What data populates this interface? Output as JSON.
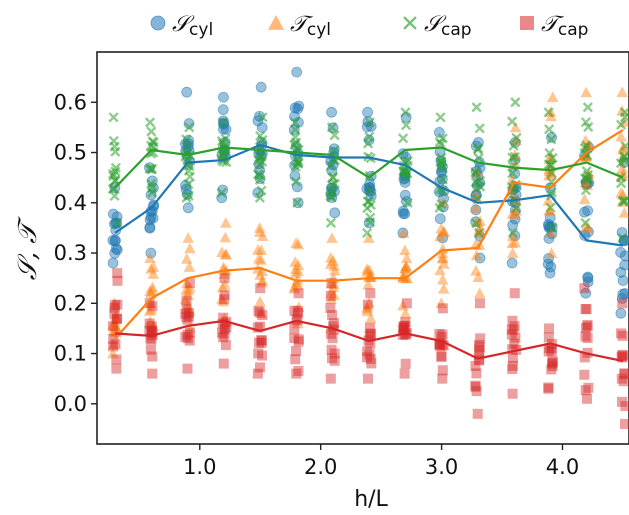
{
  "chart_data": {
    "type": "scatter",
    "xlabel": "h/L",
    "ylabel": "𝒮, 𝒯",
    "xlim": [
      0.15,
      4.55
    ],
    "ylim": [
      -0.08,
      0.7
    ],
    "x_ticks": [
      1.0,
      2.0,
      3.0,
      4.0
    ],
    "x_tick_labels": [
      "1.0",
      "2.0",
      "3.0",
      "4.0"
    ],
    "y_ticks": [
      0.0,
      0.1,
      0.2,
      0.3,
      0.4,
      0.5,
      0.6
    ],
    "y_tick_labels": [
      "0.0",
      "0.1",
      "0.2",
      "0.3",
      "0.4",
      "0.5",
      "0.6"
    ],
    "grid": false,
    "legend_position": "top",
    "x": [
      0.3,
      0.6,
      0.9,
      1.2,
      1.5,
      1.8,
      2.1,
      2.4,
      2.7,
      3.0,
      3.3,
      3.6,
      3.9,
      4.2,
      4.5
    ],
    "series": [
      {
        "name": "𝒮",
        "subscript": "cyl",
        "marker": "circle",
        "color": "#1f77b4",
        "mean": [
          0.34,
          0.39,
          0.48,
          0.485,
          0.515,
          0.495,
          0.49,
          0.49,
          0.475,
          0.43,
          0.4,
          0.405,
          0.415,
          0.325,
          0.315
        ],
        "min": [
          0.28,
          0.3,
          0.39,
          0.41,
          0.42,
          0.4,
          0.38,
          0.36,
          0.34,
          0.33,
          0.29,
          0.28,
          0.26,
          0.22,
          0.18
        ],
        "max": [
          0.43,
          0.47,
          0.62,
          0.61,
          0.63,
          0.66,
          0.58,
          0.58,
          0.57,
          0.54,
          0.52,
          0.52,
          0.53,
          0.51,
          0.48
        ]
      },
      {
        "name": "𝒯",
        "subscript": "cyl",
        "marker": "triangle",
        "color": "#ff7f0e",
        "mean": [
          0.13,
          0.21,
          0.25,
          0.265,
          0.27,
          0.245,
          0.245,
          0.25,
          0.25,
          0.305,
          0.31,
          0.44,
          0.43,
          0.5,
          0.545
        ],
        "min": [
          0.1,
          0.14,
          0.15,
          0.17,
          0.18,
          0.16,
          0.15,
          0.17,
          0.18,
          0.2,
          0.22,
          0.3,
          0.3,
          0.35,
          0.38
        ],
        "max": [
          0.2,
          0.29,
          0.33,
          0.36,
          0.35,
          0.32,
          0.33,
          0.33,
          0.34,
          0.4,
          0.46,
          0.55,
          0.61,
          0.62,
          0.62
        ]
      },
      {
        "name": "𝒮",
        "subscript": "cap",
        "marker": "cross",
        "color": "#2ca02c",
        "mean": [
          0.43,
          0.505,
          0.495,
          0.51,
          0.505,
          0.5,
          0.495,
          0.45,
          0.505,
          0.51,
          0.48,
          0.47,
          0.465,
          0.48,
          0.45
        ],
        "min": [
          0.36,
          0.42,
          0.41,
          0.42,
          0.41,
          0.4,
          0.36,
          0.34,
          0.4,
          0.39,
          0.34,
          0.34,
          0.35,
          0.36,
          0.33
        ],
        "max": [
          0.57,
          0.56,
          0.55,
          0.56,
          0.57,
          0.56,
          0.55,
          0.56,
          0.58,
          0.57,
          0.59,
          0.6,
          0.58,
          0.59,
          0.58
        ]
      },
      {
        "name": "𝒯",
        "subscript": "cap",
        "marker": "square",
        "color": "#d62728",
        "mean": [
          0.14,
          0.135,
          0.155,
          0.165,
          0.145,
          0.165,
          0.15,
          0.125,
          0.14,
          0.125,
          0.09,
          0.105,
          0.12,
          0.1,
          0.085
        ],
        "min": [
          0.07,
          0.06,
          0.07,
          0.08,
          0.06,
          0.06,
          0.05,
          0.05,
          0.06,
          0.05,
          -0.02,
          0.02,
          0.03,
          0.01,
          -0.04
        ],
        "max": [
          0.26,
          0.2,
          0.24,
          0.25,
          0.23,
          0.22,
          0.24,
          0.22,
          0.2,
          0.19,
          0.2,
          0.22,
          0.15,
          0.23,
          0.2
        ]
      }
    ]
  }
}
